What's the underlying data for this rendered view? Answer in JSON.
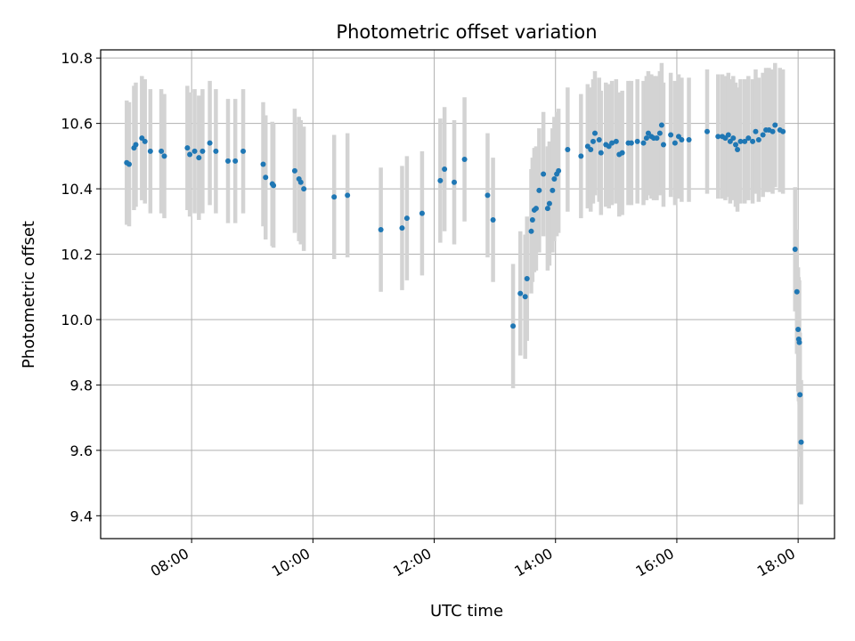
{
  "chart_data": {
    "type": "scatter",
    "title": "Photometric offset variation",
    "xlabel": "UTC time",
    "ylabel": "Photometric offset",
    "x_unit": "hours UTC",
    "xlim": [
      6.5,
      18.6
    ],
    "ylim": [
      9.33,
      10.825
    ],
    "grid": true,
    "x_ticks": [
      {
        "value": 8,
        "label": "08:00"
      },
      {
        "value": 10,
        "label": "10:00"
      },
      {
        "value": 12,
        "label": "12:00"
      },
      {
        "value": 14,
        "label": "14:00"
      },
      {
        "value": 16,
        "label": "16:00"
      },
      {
        "value": 18,
        "label": "18:00"
      }
    ],
    "y_ticks": [
      {
        "value": 9.4,
        "label": "9.4"
      },
      {
        "value": 9.6,
        "label": "9.6"
      },
      {
        "value": 9.8,
        "label": "9.8"
      },
      {
        "value": 10.0,
        "label": "10.0"
      },
      {
        "value": 10.2,
        "label": "10.2"
      },
      {
        "value": 10.4,
        "label": "10.4"
      },
      {
        "value": 10.6,
        "label": "10.6"
      },
      {
        "value": 10.8,
        "label": "10.8"
      }
    ],
    "colors": {
      "points": "#1f77b4",
      "error_bars": "#d3d3d3",
      "grid": "#b0b0b0"
    },
    "error_bar_halfwidth": 0.19,
    "points": [
      [
        6.93,
        10.48
      ],
      [
        6.97,
        10.475
      ],
      [
        7.05,
        10.525
      ],
      [
        7.08,
        10.535
      ],
      [
        7.18,
        10.555
      ],
      [
        7.23,
        10.545
      ],
      [
        7.32,
        10.515
      ],
      [
        7.5,
        10.515
      ],
      [
        7.55,
        10.5
      ],
      [
        7.93,
        10.525
      ],
      [
        7.97,
        10.505
      ],
      [
        8.05,
        10.515
      ],
      [
        8.12,
        10.495
      ],
      [
        8.18,
        10.515
      ],
      [
        8.3,
        10.54
      ],
      [
        8.4,
        10.515
      ],
      [
        8.6,
        10.485
      ],
      [
        8.72,
        10.485
      ],
      [
        8.85,
        10.515
      ],
      [
        9.18,
        10.475
      ],
      [
        9.22,
        10.435
      ],
      [
        9.33,
        10.415
      ],
      [
        9.35,
        10.41
      ],
      [
        9.7,
        10.455
      ],
      [
        9.77,
        10.43
      ],
      [
        9.8,
        10.42
      ],
      [
        9.85,
        10.4
      ],
      [
        10.35,
        10.375
      ],
      [
        10.57,
        10.38
      ],
      [
        11.12,
        10.275
      ],
      [
        11.47,
        10.28
      ],
      [
        11.55,
        10.31
      ],
      [
        11.8,
        10.325
      ],
      [
        12.1,
        10.425
      ],
      [
        12.17,
        10.46
      ],
      [
        12.33,
        10.42
      ],
      [
        12.5,
        10.49
      ],
      [
        12.88,
        10.38
      ],
      [
        12.97,
        10.305
      ],
      [
        13.3,
        9.98
      ],
      [
        13.42,
        10.08
      ],
      [
        13.5,
        10.07
      ],
      [
        13.53,
        10.125
      ],
      [
        13.6,
        10.27
      ],
      [
        13.62,
        10.305
      ],
      [
        13.65,
        10.335
      ],
      [
        13.68,
        10.34
      ],
      [
        13.73,
        10.395
      ],
      [
        13.8,
        10.445
      ],
      [
        13.87,
        10.34
      ],
      [
        13.9,
        10.355
      ],
      [
        13.95,
        10.395
      ],
      [
        13.98,
        10.43
      ],
      [
        14.02,
        10.445
      ],
      [
        14.05,
        10.455
      ],
      [
        14.2,
        10.52
      ],
      [
        14.42,
        10.5
      ],
      [
        14.53,
        10.53
      ],
      [
        14.58,
        10.52
      ],
      [
        14.62,
        10.545
      ],
      [
        14.65,
        10.57
      ],
      [
        14.72,
        10.55
      ],
      [
        14.75,
        10.51
      ],
      [
        14.83,
        10.535
      ],
      [
        14.88,
        10.53
      ],
      [
        14.93,
        10.54
      ],
      [
        15.0,
        10.545
      ],
      [
        15.05,
        10.505
      ],
      [
        15.1,
        10.51
      ],
      [
        15.2,
        10.54
      ],
      [
        15.25,
        10.54
      ],
      [
        15.35,
        10.545
      ],
      [
        15.45,
        10.54
      ],
      [
        15.5,
        10.555
      ],
      [
        15.53,
        10.57
      ],
      [
        15.58,
        10.56
      ],
      [
        15.62,
        10.555
      ],
      [
        15.67,
        10.555
      ],
      [
        15.72,
        10.57
      ],
      [
        15.75,
        10.595
      ],
      [
        15.78,
        10.535
      ],
      [
        15.9,
        10.565
      ],
      [
        15.97,
        10.54
      ],
      [
        16.03,
        10.56
      ],
      [
        16.08,
        10.55
      ],
      [
        16.2,
        10.55
      ],
      [
        16.5,
        10.575
      ],
      [
        16.68,
        10.56
      ],
      [
        16.75,
        10.56
      ],
      [
        16.8,
        10.555
      ],
      [
        16.85,
        10.565
      ],
      [
        16.88,
        10.545
      ],
      [
        16.93,
        10.555
      ],
      [
        16.97,
        10.535
      ],
      [
        17.0,
        10.52
      ],
      [
        17.05,
        10.545
      ],
      [
        17.12,
        10.545
      ],
      [
        17.18,
        10.555
      ],
      [
        17.25,
        10.545
      ],
      [
        17.3,
        10.575
      ],
      [
        17.35,
        10.55
      ],
      [
        17.42,
        10.565
      ],
      [
        17.47,
        10.58
      ],
      [
        17.52,
        10.58
      ],
      [
        17.58,
        10.575
      ],
      [
        17.62,
        10.595
      ],
      [
        17.7,
        10.58
      ],
      [
        17.75,
        10.575
      ],
      [
        17.95,
        10.215
      ],
      [
        17.98,
        10.085
      ],
      [
        18.0,
        9.97
      ],
      [
        18.01,
        9.94
      ],
      [
        18.02,
        9.93
      ],
      [
        18.03,
        9.77
      ],
      [
        18.05,
        9.625
      ]
    ]
  }
}
